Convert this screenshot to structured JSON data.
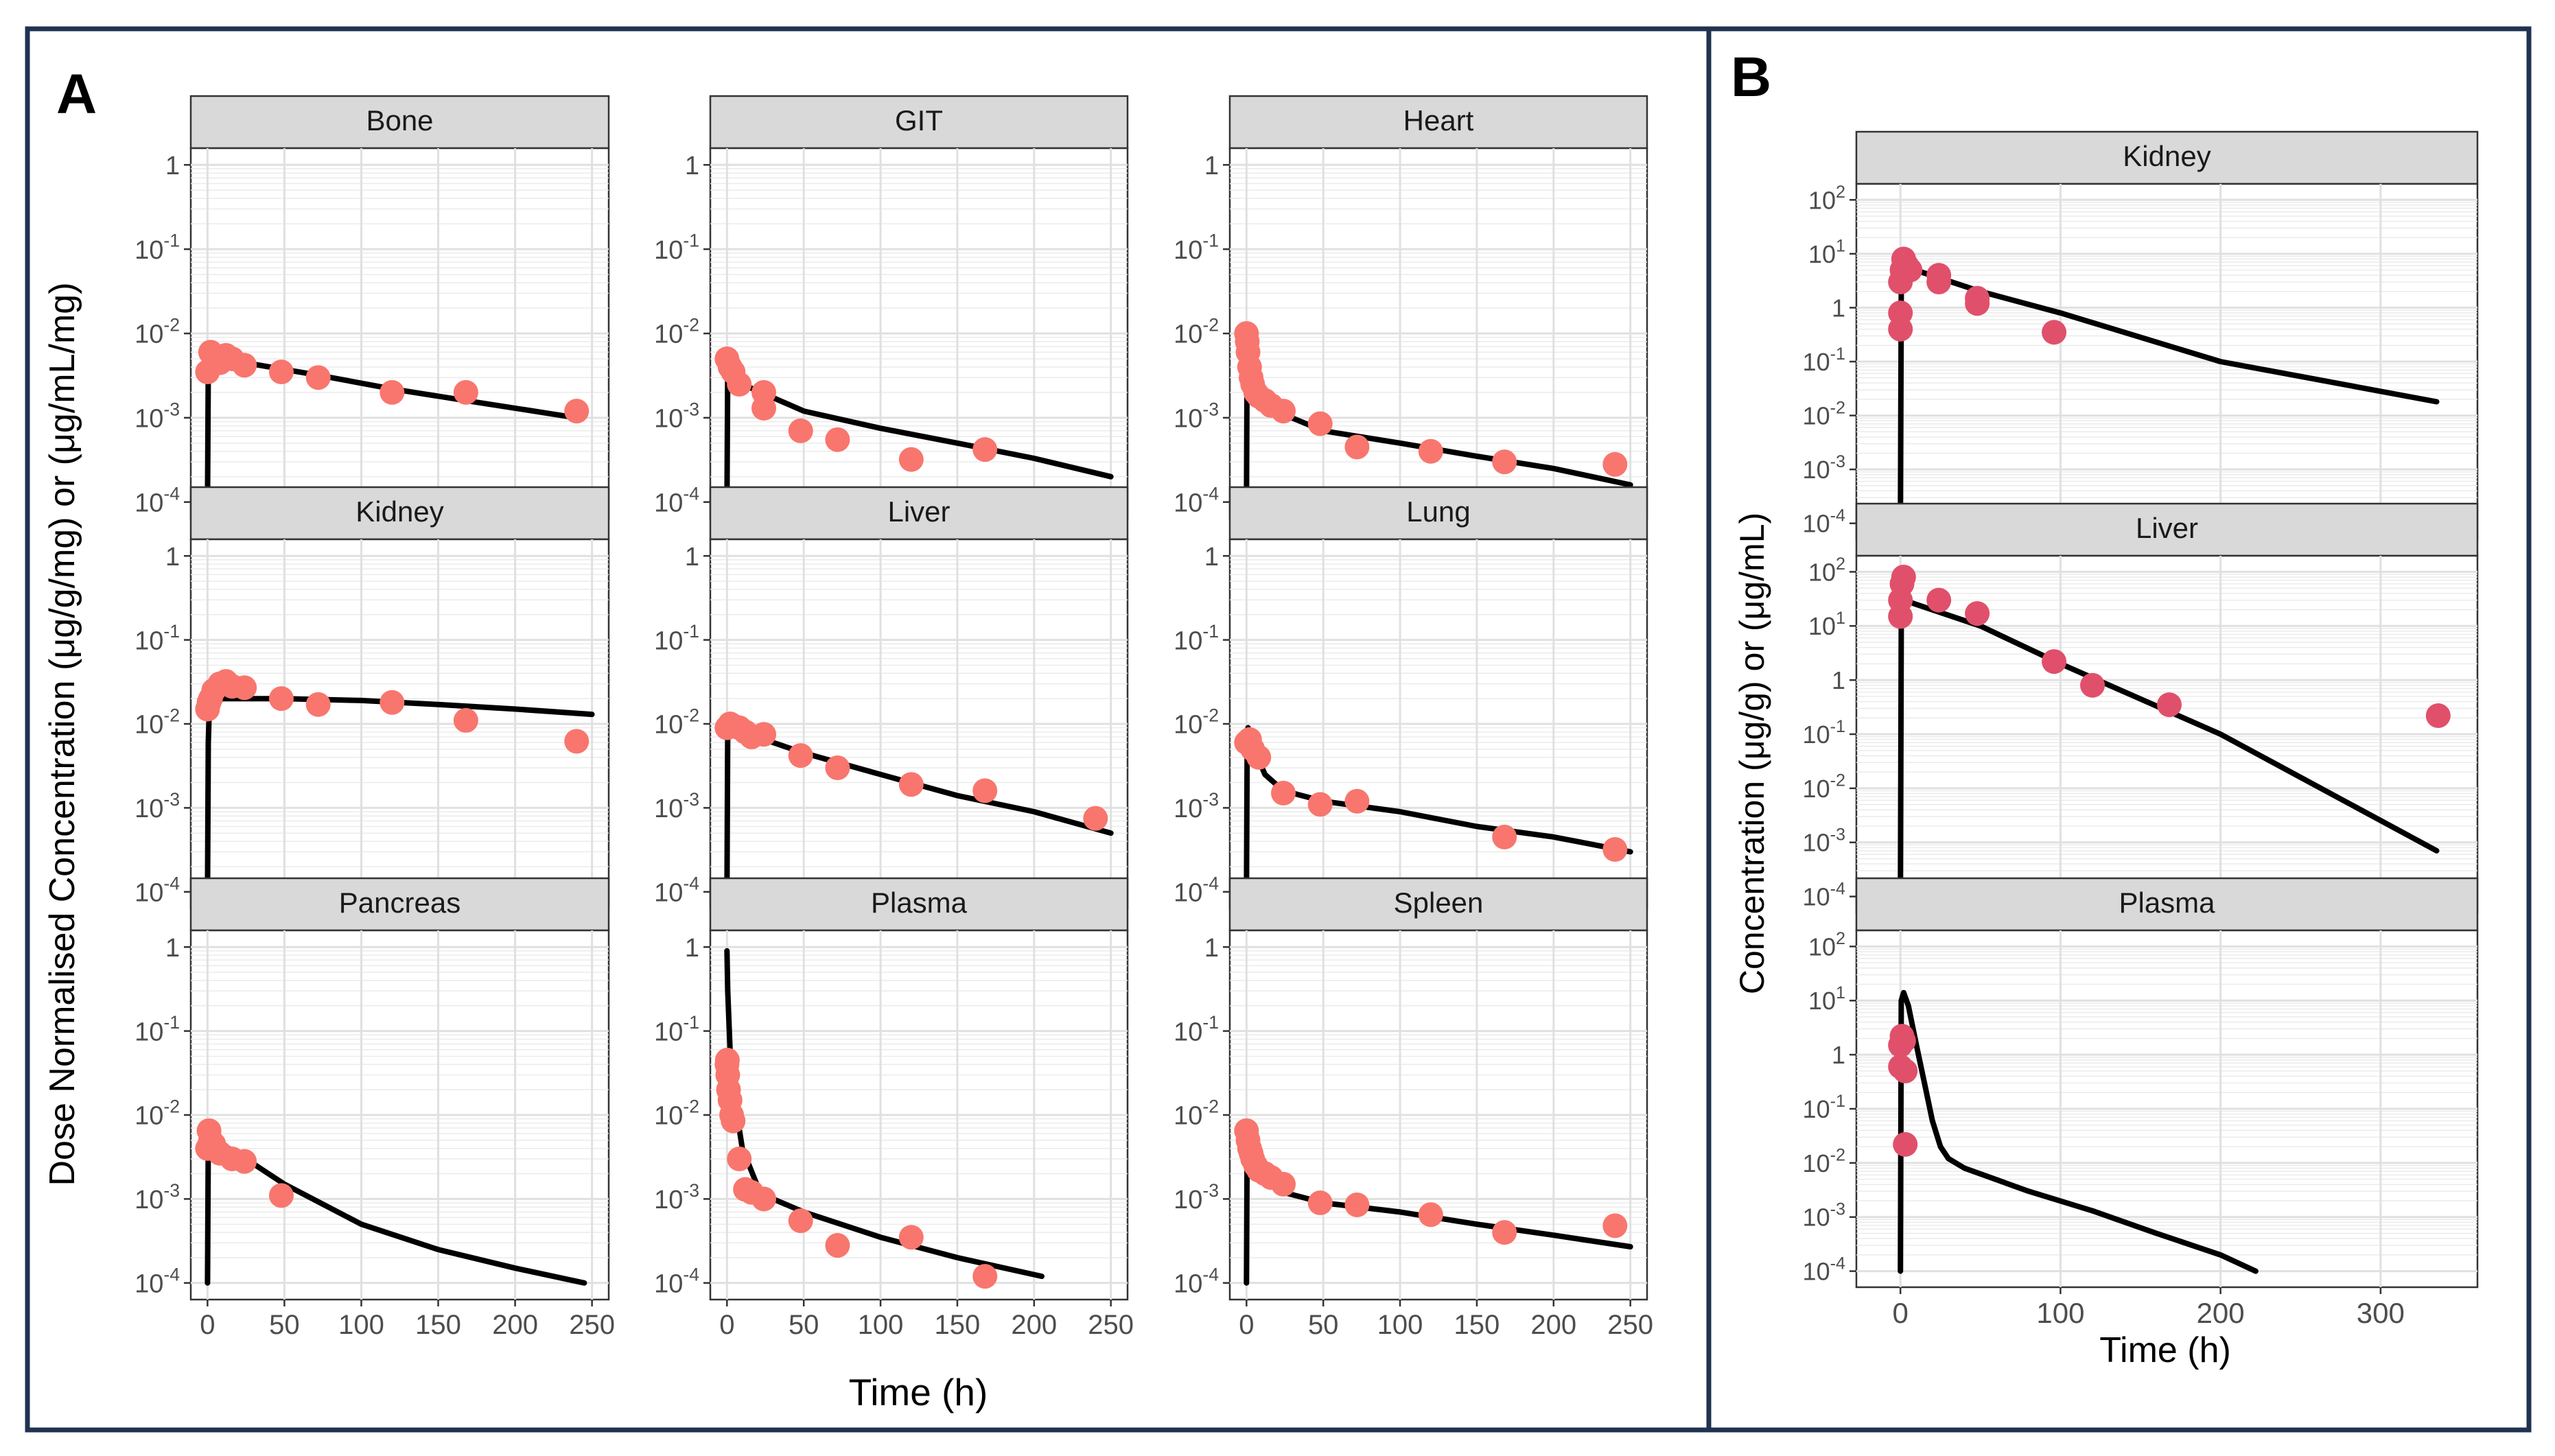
{
  "panel_labels": {
    "a": "A",
    "b": "B"
  },
  "axes": {
    "a_ylabel": "Dose Normalised Concentration (μg/g/mg) or (μg/mL/mg)",
    "a_xlabel": "Time (h)",
    "b_ylabel": "Concentration (μg/g) or (μg/mL)",
    "b_xlabel": "Time (h)",
    "a_xticks": [
      "0",
      "50",
      "100",
      "150",
      "200",
      "250"
    ],
    "b_xticks": [
      "0",
      "100",
      "200",
      "300"
    ],
    "a_yticks": [
      {
        "base": "10",
        "exp": "-4"
      },
      {
        "base": "10",
        "exp": "-3"
      },
      {
        "base": "10",
        "exp": "-2"
      },
      {
        "base": "10",
        "exp": "-1"
      },
      {
        "base": "1",
        "exp": ""
      }
    ],
    "b_yticks": [
      {
        "base": "10",
        "exp": "-4"
      },
      {
        "base": "10",
        "exp": "-3"
      },
      {
        "base": "10",
        "exp": "-2"
      },
      {
        "base": "10",
        "exp": "-1"
      },
      {
        "base": "1",
        "exp": ""
      },
      {
        "base": "10",
        "exp": "1"
      },
      {
        "base": "10",
        "exp": "2"
      }
    ]
  },
  "colors": {
    "a_points": "#f8766d",
    "b_points": "#e0506b",
    "line": "#000000",
    "strip": "#d9d9d9",
    "grid": "#ebebeb",
    "border": "#1f3350"
  },
  "chart_data": [
    {
      "panel": "A",
      "type": "scatter",
      "title": "Bone",
      "xlim": [
        0,
        250
      ],
      "ylim_log10": [
        -4,
        0
      ],
      "observed": {
        "x": [
          0,
          2,
          4,
          8,
          12,
          16,
          24,
          48,
          72,
          120,
          168,
          240
        ],
        "y": [
          0.0035,
          0.006,
          0.005,
          0.0045,
          0.0055,
          0.005,
          0.0042,
          0.0035,
          0.003,
          0.002,
          0.002,
          0.0012
        ]
      },
      "predicted": {
        "x": [
          0,
          0.5,
          1,
          24,
          72,
          120,
          168,
          240
        ],
        "y": [
          0.0001,
          0.004,
          0.0055,
          0.0045,
          0.0032,
          0.0022,
          0.0016,
          0.001
        ]
      }
    },
    {
      "panel": "A",
      "type": "scatter",
      "title": "GIT",
      "xlim": [
        0,
        250
      ],
      "ylim_log10": [
        -4,
        0
      ],
      "observed": {
        "x": [
          0,
          2,
          4,
          8,
          24,
          24,
          48,
          72,
          120,
          168
        ],
        "y": [
          0.005,
          0.004,
          0.0035,
          0.0025,
          0.002,
          0.0013,
          0.0007,
          0.00055,
          0.00032,
          0.00042
        ]
      },
      "predicted": {
        "x": [
          0,
          0.5,
          1,
          10,
          50,
          100,
          150,
          200,
          250
        ],
        "y": [
          0.0001,
          0.004,
          0.0045,
          0.0025,
          0.0012,
          0.00075,
          0.0005,
          0.00033,
          0.0002
        ]
      }
    },
    {
      "panel": "A",
      "type": "scatter",
      "title": "Heart",
      "xlim": [
        0,
        250
      ],
      "ylim_log10": [
        -4,
        0
      ],
      "observed": {
        "x": [
          0,
          0.5,
          1,
          2,
          3,
          4,
          6,
          8,
          12,
          16,
          24,
          48,
          72,
          120,
          168,
          240
        ],
        "y": [
          0.01,
          0.008,
          0.006,
          0.004,
          0.003,
          0.0025,
          0.002,
          0.0018,
          0.0016,
          0.0014,
          0.0012,
          0.00085,
          0.00045,
          0.0004,
          0.0003,
          0.00028
        ]
      },
      "predicted": {
        "x": [
          0,
          0.5,
          1,
          5,
          12,
          24,
          50,
          100,
          150,
          200,
          250
        ],
        "y": [
          0.0001,
          0.012,
          0.01,
          0.004,
          0.0018,
          0.0011,
          0.0007,
          0.0005,
          0.00035,
          0.00025,
          0.00016
        ]
      }
    },
    {
      "panel": "A",
      "type": "scatter",
      "title": "Kidney",
      "xlim": [
        0,
        250
      ],
      "ylim_log10": [
        -4,
        0
      ],
      "observed": {
        "x": [
          0,
          1,
          2,
          4,
          8,
          12,
          16,
          24,
          48,
          72,
          120,
          168,
          240
        ],
        "y": [
          0.015,
          0.018,
          0.02,
          0.025,
          0.03,
          0.032,
          0.028,
          0.027,
          0.02,
          0.017,
          0.018,
          0.011,
          0.0062
        ]
      },
      "predicted": {
        "x": [
          0,
          0.5,
          1,
          3,
          10,
          50,
          100,
          150,
          200,
          250
        ],
        "y": [
          0.0001,
          0.006,
          0.012,
          0.018,
          0.02,
          0.02,
          0.019,
          0.017,
          0.015,
          0.013
        ]
      }
    },
    {
      "panel": "A",
      "type": "scatter",
      "title": "Liver",
      "xlim": [
        0,
        250
      ],
      "ylim_log10": [
        -4,
        0
      ],
      "observed": {
        "x": [
          0,
          2,
          4,
          8,
          12,
          16,
          24,
          48,
          72,
          120,
          168,
          240
        ],
        "y": [
          0.009,
          0.01,
          0.0095,
          0.009,
          0.008,
          0.007,
          0.0075,
          0.0042,
          0.003,
          0.0019,
          0.0016,
          0.00075
        ]
      },
      "predicted": {
        "x": [
          0,
          0.5,
          1,
          10,
          50,
          100,
          150,
          200,
          250
        ],
        "y": [
          0.0001,
          0.009,
          0.01,
          0.008,
          0.0045,
          0.0025,
          0.0014,
          0.0009,
          0.0005
        ]
      }
    },
    {
      "panel": "A",
      "type": "scatter",
      "title": "Lung",
      "xlim": [
        0,
        250
      ],
      "ylim_log10": [
        -4,
        0
      ],
      "observed": {
        "x": [
          0,
          2,
          4,
          8,
          24,
          48,
          72,
          168,
          240
        ],
        "y": [
          0.006,
          0.0065,
          0.005,
          0.004,
          0.0015,
          0.0011,
          0.0012,
          0.00045,
          0.00032
        ]
      },
      "predicted": {
        "x": [
          0,
          0.5,
          1,
          5,
          12,
          24,
          50,
          100,
          150,
          200,
          250
        ],
        "y": [
          0.0001,
          0.008,
          0.009,
          0.005,
          0.0025,
          0.0016,
          0.0012,
          0.0009,
          0.0006,
          0.00045,
          0.0003
        ]
      }
    },
    {
      "panel": "A",
      "type": "scatter",
      "title": "Pancreas",
      "xlim": [
        0,
        250
      ],
      "ylim_log10": [
        -4,
        0
      ],
      "observed": {
        "x": [
          0,
          1,
          2,
          4,
          8,
          16,
          24,
          48
        ],
        "y": [
          0.004,
          0.0065,
          0.005,
          0.0045,
          0.0035,
          0.003,
          0.0028,
          0.0011
        ]
      },
      "predicted": {
        "x": [
          0,
          0.5,
          1,
          5,
          25,
          50,
          100,
          150,
          200,
          245
        ],
        "y": [
          0.0001,
          0.005,
          0.0055,
          0.005,
          0.003,
          0.0015,
          0.0005,
          0.00025,
          0.00015,
          0.0001
        ]
      }
    },
    {
      "panel": "A",
      "type": "scatter",
      "title": "Plasma",
      "xlim": [
        0,
        250
      ],
      "ylim_log10": [
        -4,
        0
      ],
      "observed": {
        "x": [
          0,
          0.25,
          0.5,
          1,
          2,
          3,
          4,
          8,
          12,
          16,
          24,
          48,
          72,
          120,
          168
        ],
        "y": [
          0.04,
          0.045,
          0.03,
          0.02,
          0.015,
          0.01,
          0.0085,
          0.003,
          0.0013,
          0.0012,
          0.001,
          0.00055,
          0.00028,
          0.00035,
          0.00012
        ]
      },
      "predicted": {
        "x": [
          0,
          0.5,
          2,
          5,
          10,
          20,
          30,
          50,
          100,
          150,
          205
        ],
        "y": [
          0.9,
          0.3,
          0.06,
          0.015,
          0.004,
          0.0014,
          0.001,
          0.0007,
          0.00035,
          0.0002,
          0.00012
        ]
      }
    },
    {
      "panel": "A",
      "type": "scatter",
      "title": "Spleen",
      "xlim": [
        0,
        250
      ],
      "ylim_log10": [
        -4,
        0
      ],
      "observed": {
        "x": [
          0,
          1,
          2,
          3,
          4,
          6,
          8,
          12,
          16,
          24,
          48,
          72,
          120,
          168,
          240
        ],
        "y": [
          0.0065,
          0.005,
          0.004,
          0.0035,
          0.003,
          0.0025,
          0.0022,
          0.002,
          0.0018,
          0.0015,
          0.0009,
          0.00085,
          0.00065,
          0.0004,
          0.00048
        ]
      },
      "predicted": {
        "x": [
          0,
          0.5,
          1,
          5,
          12,
          24,
          50,
          100,
          150,
          200,
          250
        ],
        "y": [
          0.0001,
          0.008,
          0.007,
          0.003,
          0.0018,
          0.0012,
          0.0009,
          0.0007,
          0.0005,
          0.00037,
          0.00027
        ]
      }
    },
    {
      "panel": "B",
      "type": "scatter",
      "title": "Kidney",
      "xlim": [
        -12,
        345
      ],
      "ylim_log10": [
        -4,
        2
      ],
      "observed": {
        "x": [
          0,
          0,
          0,
          1,
          2,
          4,
          6,
          24,
          24,
          48,
          48,
          96
        ],
        "y": [
          0.4,
          0.8,
          3,
          5,
          8,
          6,
          5,
          4,
          3,
          1.5,
          1.2,
          0.35
        ]
      },
      "predicted": {
        "x": [
          0,
          0.5,
          1,
          5,
          50,
          100,
          200,
          335
        ],
        "y": [
          0.0001,
          2,
          5,
          5.5,
          2,
          0.8,
          0.1,
          0.018
        ]
      }
    },
    {
      "panel": "B",
      "type": "scatter",
      "title": "Liver",
      "xlim": [
        -12,
        345
      ],
      "ylim_log10": [
        -4,
        2
      ],
      "observed": {
        "x": [
          0,
          0,
          1,
          2,
          24,
          48,
          96,
          120,
          168,
          336
        ],
        "y": [
          15,
          30,
          60,
          80,
          30,
          17,
          2.2,
          0.8,
          0.35,
          0.22
        ]
      },
      "predicted": {
        "x": [
          0,
          0.5,
          1,
          5,
          50,
          100,
          200,
          335
        ],
        "y": [
          0.0001,
          10,
          25,
          28,
          10,
          2,
          0.1,
          0.0007
        ]
      }
    },
    {
      "panel": "B",
      "type": "scatter",
      "title": "Plasma",
      "xlim": [
        -12,
        345
      ],
      "ylim_log10": [
        -4,
        2
      ],
      "observed": {
        "x": [
          0,
          0,
          1,
          2,
          3,
          3
        ],
        "y": [
          0.6,
          1.5,
          2.2,
          1.8,
          0.5,
          0.022
        ]
      },
      "predicted": {
        "x": [
          0,
          0.5,
          2,
          5,
          10,
          15,
          20,
          25,
          30,
          40,
          80,
          120,
          160,
          200,
          222
        ],
        "y": [
          0.0001,
          10,
          14,
          8,
          1.5,
          0.3,
          0.06,
          0.02,
          0.012,
          0.008,
          0.003,
          0.0013,
          0.0005,
          0.0002,
          0.0001
        ]
      }
    }
  ]
}
